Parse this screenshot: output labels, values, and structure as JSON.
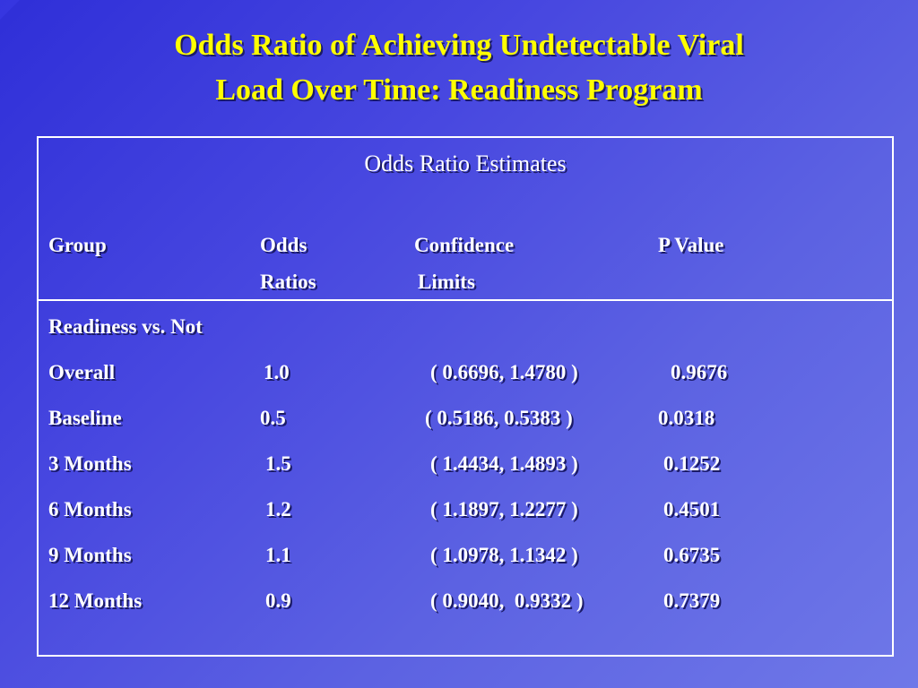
{
  "slide": {
    "title_line1": "Odds Ratio of Achieving Undetectable Viral",
    "title_line2": "Load Over Time: Readiness Program"
  },
  "table": {
    "heading": "Odds Ratio Estimates",
    "columns": {
      "group": "Group",
      "odds_line1": "Odds",
      "odds_line2": "Ratios",
      "ci_line1": "Confidence",
      "ci_line2": "Limits",
      "p": "P Value"
    },
    "section_label": "Readiness vs. Not",
    "rows": [
      {
        "group": "Overall",
        "odds": "1.0",
        "ci": "( 0.6696, 1.4780 )",
        "p": "0.9676"
      },
      {
        "group": "Baseline",
        "odds": "0.5",
        "ci": "( 0.5186, 0.5383 )",
        "p": "0.0318"
      },
      {
        "group": "3 Months",
        "odds": "1.5",
        "ci": "( 1.4434, 1.4893 )",
        "p": "0.1252"
      },
      {
        "group": "6 Months",
        "odds": "1.2",
        "ci": "( 1.1897, 1.2277 )",
        "p": "0.4501"
      },
      {
        "group": "9 Months",
        "odds": "1.1",
        "ci": "( 1.0978, 1.1342 )",
        "p": "0.6735"
      },
      {
        "group": "12 Months",
        "odds": "0.9",
        "ci": "( 0.9040,  0.9332 )",
        "p": "0.7379"
      }
    ]
  },
  "colors": {
    "title": "#ffff00",
    "text": "#ffffff",
    "background_start": "#2f2fd8",
    "background_end": "#6f78e8"
  }
}
